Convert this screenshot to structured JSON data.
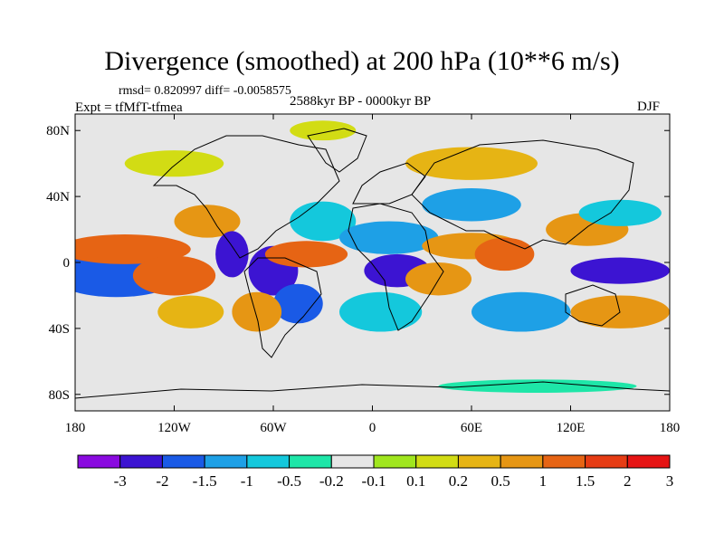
{
  "map": {
    "title": "Divergence (smoothed) at 200 hPa (10**6 m/s)",
    "stats": "rmsd= 0.820997 diff= -0.0058575",
    "experiment": "Expt = tfMfT-tfmea",
    "period": "2588kyr BP - 0000kyr BP",
    "season": "DJF",
    "projection": "equirectangular",
    "lon_range": [
      -180,
      180
    ],
    "lat_range": [
      -90,
      90
    ],
    "lat_ticks": [
      {
        "value": 80,
        "label": "80N"
      },
      {
        "value": 40,
        "label": "40N"
      },
      {
        "value": 0,
        "label": "0"
      },
      {
        "value": -40,
        "label": "40S"
      },
      {
        "value": -80,
        "label": "80S"
      }
    ],
    "lon_ticks": [
      {
        "value": -180,
        "label": "180"
      },
      {
        "value": -120,
        "label": "120W"
      },
      {
        "value": -60,
        "label": "60W"
      },
      {
        "value": 0,
        "label": "0"
      },
      {
        "value": 60,
        "label": "60E"
      },
      {
        "value": 120,
        "label": "120E"
      },
      {
        "value": 180,
        "label": "180"
      }
    ],
    "colorbar": {
      "bins": [
        {
          "color": "#8a0ae0"
        },
        {
          "color": "#3c14d2"
        },
        {
          "color": "#1a5ae6"
        },
        {
          "color": "#1ea0e6"
        },
        {
          "color": "#14c8dc"
        },
        {
          "color": "#1ee6a8"
        },
        {
          "color": "#e6e6e6"
        },
        {
          "color": "#a0e61e"
        },
        {
          "color": "#d2dc14"
        },
        {
          "color": "#e6b414"
        },
        {
          "color": "#e69614"
        },
        {
          "color": "#e66414"
        },
        {
          "color": "#e63c14"
        },
        {
          "color": "#e61414"
        }
      ],
      "levels": [
        "-3",
        "-2",
        "-1.5",
        "-1",
        "-0.5",
        "-0.2",
        "-0.1",
        "0.1",
        "0.2",
        "0.5",
        "1",
        "1.5",
        "2",
        "3"
      ]
    },
    "anomalies": [
      {
        "lon": -160,
        "lat": -5,
        "rx": 28,
        "ry": 10,
        "bin": 0
      },
      {
        "lon": -155,
        "lat": -7,
        "rx": 40,
        "ry": 14,
        "bin": 2
      },
      {
        "lon": -150,
        "lat": 8,
        "rx": 40,
        "ry": 9,
        "bin": 11
      },
      {
        "lon": -120,
        "lat": -8,
        "rx": 25,
        "ry": 12,
        "bin": 11
      },
      {
        "lon": -110,
        "lat": -30,
        "rx": 20,
        "ry": 10,
        "bin": 9
      },
      {
        "lon": -100,
        "lat": 25,
        "rx": 20,
        "ry": 10,
        "bin": 10
      },
      {
        "lon": -85,
        "lat": 5,
        "rx": 10,
        "ry": 14,
        "bin": 1
      },
      {
        "lon": -60,
        "lat": -5,
        "rx": 15,
        "ry": 15,
        "bin": 1
      },
      {
        "lon": -45,
        "lat": -25,
        "rx": 15,
        "ry": 12,
        "bin": 2
      },
      {
        "lon": -70,
        "lat": -30,
        "rx": 15,
        "ry": 12,
        "bin": 10
      },
      {
        "lon": -40,
        "lat": 5,
        "rx": 25,
        "ry": 8,
        "bin": 11
      },
      {
        "lon": -30,
        "lat": 25,
        "rx": 20,
        "ry": 12,
        "bin": 4
      },
      {
        "lon": 10,
        "lat": 15,
        "rx": 30,
        "ry": 10,
        "bin": 3
      },
      {
        "lon": 15,
        "lat": -5,
        "rx": 20,
        "ry": 10,
        "bin": 1
      },
      {
        "lon": 5,
        "lat": -30,
        "rx": 25,
        "ry": 12,
        "bin": 4
      },
      {
        "lon": 60,
        "lat": 10,
        "rx": 30,
        "ry": 8,
        "bin": 10
      },
      {
        "lon": 80,
        "lat": 5,
        "rx": 18,
        "ry": 10,
        "bin": 11
      },
      {
        "lon": 60,
        "lat": 35,
        "rx": 30,
        "ry": 10,
        "bin": 3
      },
      {
        "lon": 40,
        "lat": -10,
        "rx": 20,
        "ry": 10,
        "bin": 10
      },
      {
        "lon": 90,
        "lat": -30,
        "rx": 30,
        "ry": 12,
        "bin": 3
      },
      {
        "lon": 150,
        "lat": -5,
        "rx": 30,
        "ry": 8,
        "bin": 1
      },
      {
        "lon": 130,
        "lat": 20,
        "rx": 25,
        "ry": 10,
        "bin": 10
      },
      {
        "lon": 150,
        "lat": 30,
        "rx": 25,
        "ry": 8,
        "bin": 4
      },
      {
        "lon": 150,
        "lat": -30,
        "rx": 30,
        "ry": 10,
        "bin": 10
      },
      {
        "lon": -120,
        "lat": 60,
        "rx": 30,
        "ry": 8,
        "bin": 8
      },
      {
        "lon": 60,
        "lat": 60,
        "rx": 40,
        "ry": 10,
        "bin": 9
      },
      {
        "lon": -30,
        "lat": 80,
        "rx": 20,
        "ry": 6,
        "bin": 8
      },
      {
        "lon": 100,
        "lat": -75,
        "rx": 60,
        "ry": 4,
        "bin": 5
      }
    ]
  }
}
